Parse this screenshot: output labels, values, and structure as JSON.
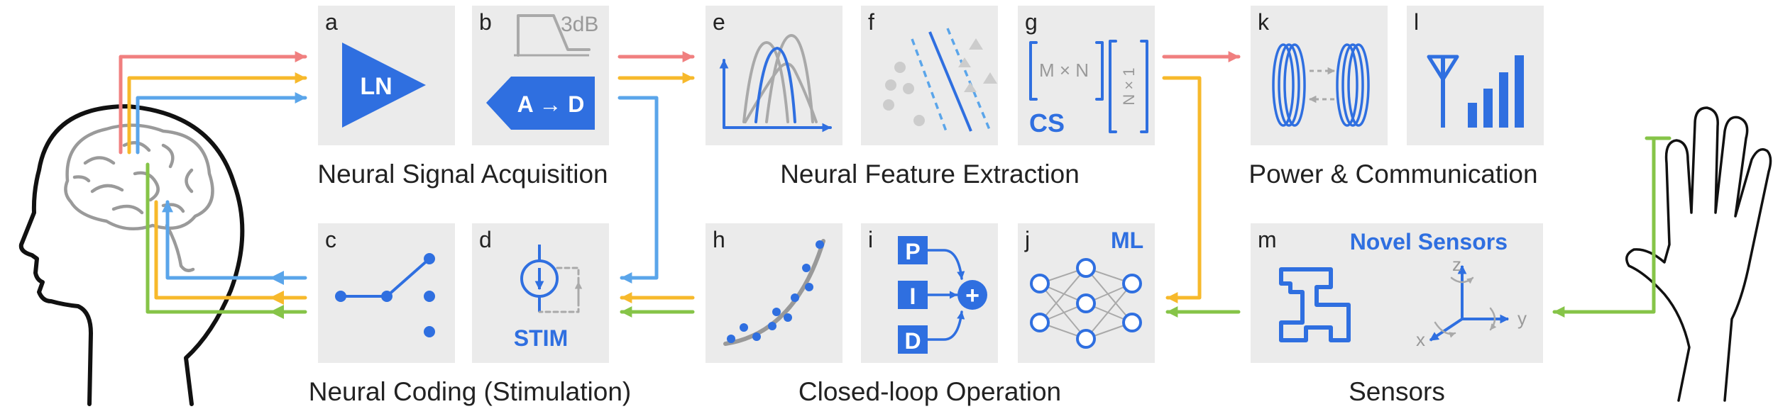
{
  "panels": {
    "a": {
      "label": "a",
      "symbol": "LN"
    },
    "b": {
      "label": "b",
      "symbol": "A → D",
      "filter": "3dB"
    },
    "c": {
      "label": "c"
    },
    "d": {
      "label": "d",
      "symbol": "STIM"
    },
    "e": {
      "label": "e"
    },
    "f": {
      "label": "f"
    },
    "g": {
      "label": "g",
      "matrix": "M × N",
      "vector": "N × 1",
      "symbol": "CS"
    },
    "h": {
      "label": "h"
    },
    "i": {
      "label": "i",
      "p": "P",
      "i": "I",
      "d": "D",
      "sum": "+"
    },
    "j": {
      "label": "j",
      "symbol": "ML"
    },
    "k": {
      "label": "k"
    },
    "l": {
      "label": "l"
    },
    "m": {
      "label": "m",
      "title": "Novel Sensors",
      "axis_z": "z",
      "axis_y": "y",
      "axis_x": "x"
    }
  },
  "captions": {
    "acquisition": "Neural Signal Acquisition",
    "extraction": "Neural Feature Extraction",
    "power": "Power & Communication",
    "coding": "Neural Coding (Stimulation)",
    "closed_loop": "Closed-loop Operation",
    "sensors": "Sensors"
  },
  "colors": {
    "red": "#f07f7f",
    "yellow": "#f7b92b",
    "blue": "#5aa5ea",
    "green": "#86c448",
    "accent": "#2f6fe0",
    "panel": "#ebebeb",
    "gray": "#a9a9a9"
  }
}
